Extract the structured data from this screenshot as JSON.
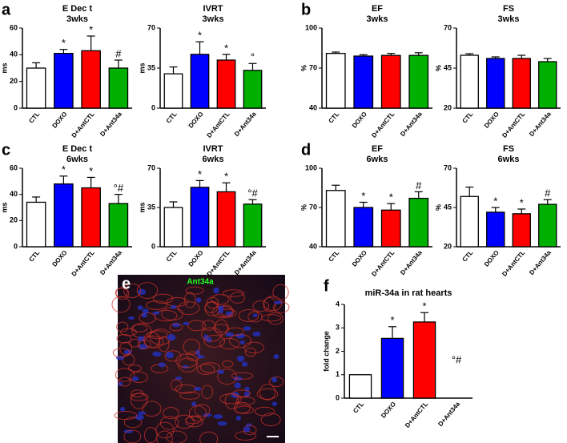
{
  "chart_data": [
    {
      "type": "bar",
      "panel": "a",
      "title": "E Dec t",
      "subtitle": "3wks",
      "ylabel": "ms",
      "categories": [
        "CTL",
        "DOXO",
        "D+AntCTL",
        "D+Ant34a"
      ],
      "colors": [
        "#ffffff",
        "#0000ff",
        "#ff0000",
        "#00b000"
      ],
      "values": [
        30,
        41,
        43,
        30
      ],
      "errors": [
        4,
        3,
        11,
        6
      ],
      "annotations": [
        null,
        "*",
        "*",
        "#"
      ],
      "ylim": [
        0,
        60
      ],
      "yticks": [
        0,
        20,
        40,
        60
      ]
    },
    {
      "type": "bar",
      "title": "IVRT",
      "subtitle": "3wks",
      "ylabel": "ms",
      "categories": [
        "CTL",
        "DOXO",
        "D+AntCTL",
        "D+Ant34a"
      ],
      "colors": [
        "#ffffff",
        "#0000ff",
        "#ff0000",
        "#00b000"
      ],
      "values": [
        30,
        47,
        42,
        33
      ],
      "errors": [
        6,
        11,
        5,
        6
      ],
      "annotations": [
        null,
        "*",
        "*",
        "°"
      ],
      "ylim": [
        0,
        70
      ],
      "yticks": [
        0,
        35,
        70
      ]
    },
    {
      "type": "bar",
      "panel": "b",
      "title": "EF",
      "subtitle": "3wks",
      "ylabel": "%",
      "categories": [
        "CTL",
        "DOXO",
        "D+AntCTL",
        "D+Ant34a"
      ],
      "colors": [
        "#ffffff",
        "#0000ff",
        "#ff0000",
        "#00b000"
      ],
      "values": [
        81,
        79,
        79.5,
        79.5
      ],
      "errors": [
        1,
        1,
        1.5,
        2
      ],
      "annotations": [
        null,
        null,
        null,
        null
      ],
      "ylim": [
        40,
        100
      ],
      "yticks": [
        40,
        70,
        100
      ]
    },
    {
      "type": "bar",
      "title": "FS",
      "subtitle": "3wks",
      "ylabel": "%",
      "categories": [
        "CTL",
        "DOXO",
        "D+AntCTL",
        "D+Ant34a"
      ],
      "colors": [
        "#ffffff",
        "#0000ff",
        "#ff0000",
        "#00b000"
      ],
      "values": [
        53,
        51,
        51,
        49
      ],
      "errors": [
        1,
        1,
        2,
        2
      ],
      "annotations": [
        null,
        null,
        null,
        null
      ],
      "ylim": [
        20,
        70
      ],
      "yticks": [
        20,
        45,
        70
      ]
    },
    {
      "type": "bar",
      "panel": "c",
      "title": "E Dec t",
      "subtitle": "6wks",
      "ylabel": "ms",
      "categories": [
        "CTL",
        "DOXO",
        "D+AntCTL",
        "D+Ant34a"
      ],
      "colors": [
        "#ffffff",
        "#0000ff",
        "#ff0000",
        "#00b000"
      ],
      "values": [
        34,
        48,
        45,
        33
      ],
      "errors": [
        4,
        6,
        8,
        7
      ],
      "annotations": [
        null,
        "*",
        "*",
        "°#"
      ],
      "ylim": [
        0,
        60
      ],
      "yticks": [
        0,
        20,
        40,
        60
      ]
    },
    {
      "type": "bar",
      "title": "IVRT",
      "subtitle": "6wks",
      "ylabel": "ms",
      "categories": [
        "CTL",
        "DOXO",
        "D+AntCTL",
        "D+Ant34a"
      ],
      "colors": [
        "#ffffff",
        "#0000ff",
        "#ff0000",
        "#00b000"
      ],
      "values": [
        35,
        53,
        49,
        38
      ],
      "errors": [
        5,
        6,
        8,
        4
      ],
      "annotations": [
        null,
        "*",
        "*",
        "°#"
      ],
      "ylim": [
        0,
        70
      ],
      "yticks": [
        0,
        35,
        70
      ]
    },
    {
      "type": "bar",
      "panel": "d",
      "title": "EF",
      "subtitle": "6wks",
      "ylabel": "%",
      "categories": [
        "CTL",
        "DOXO",
        "D+AntCTL",
        "D+Ant34a"
      ],
      "colors": [
        "#ffffff",
        "#0000ff",
        "#ff0000",
        "#00b000"
      ],
      "values": [
        83,
        70,
        68,
        77
      ],
      "errors": [
        4,
        4,
        5,
        5
      ],
      "annotations": [
        null,
        "*",
        "*",
        "#"
      ],
      "ylim": [
        40,
        100
      ],
      "yticks": [
        40,
        70,
        100
      ]
    },
    {
      "type": "bar",
      "title": "FS",
      "subtitle": "6wks",
      "ylabel": "%",
      "categories": [
        "CTL",
        "DOXO",
        "D+AntCTL",
        "D+Ant34a"
      ],
      "colors": [
        "#ffffff",
        "#0000ff",
        "#ff0000",
        "#00b000"
      ],
      "values": [
        52,
        42,
        41,
        47
      ],
      "errors": [
        6,
        3,
        3,
        3
      ],
      "annotations": [
        null,
        "*",
        "*",
        "#"
      ],
      "ylim": [
        20,
        70
      ],
      "yticks": [
        20,
        45,
        70
      ]
    },
    {
      "type": "bar",
      "panel": "f",
      "title": "miR-34a in rat hearts",
      "ylabel": "fold change",
      "categories": [
        "CTL",
        "DOXO",
        "D+AntCTL",
        "D+Ant34a"
      ],
      "colors": [
        "#ffffff",
        "#0000ff",
        "#ff0000",
        "#00b000"
      ],
      "values": [
        1,
        2.55,
        3.25,
        0
      ],
      "errors": [
        0,
        0.5,
        0.4,
        0
      ],
      "annotations": [
        null,
        "*",
        "*",
        "°#"
      ],
      "ylim": [
        0,
        4
      ],
      "yticks": [
        0,
        1,
        2,
        3,
        4
      ]
    }
  ],
  "image_panel": {
    "panel": "e",
    "caption": "Ant34a"
  }
}
